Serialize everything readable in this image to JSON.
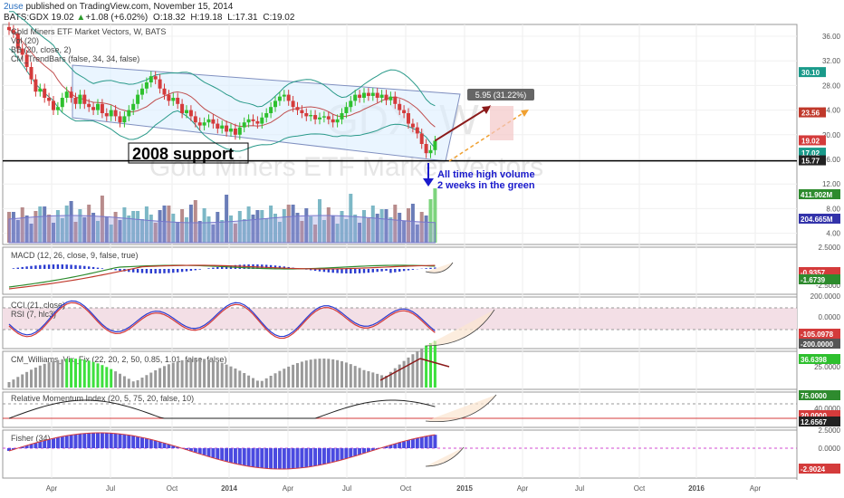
{
  "header": {
    "user": "2use",
    "published": "published on TradingView.com, November 15, 2014",
    "symbol": "BATS:GDX",
    "last": "19.02",
    "change": "+1.08 (+6.02%)",
    "o": "O:18.32",
    "h": "H:19.18",
    "l": "L:17.31",
    "c": "C:19.02"
  },
  "panes": {
    "main": {
      "labels": [
        "Gold Miners ETF Market Vectors, W, BATS",
        "Vol (20)",
        "BB (20, close, 2)",
        "CM_TrendBars (false, 34, 34, false)"
      ],
      "watermark_symbol": "GDX, W",
      "watermark_name": "Gold Miners ETF Market Vectors",
      "price_ticks": [
        "36.00",
        "32.00",
        "28.00",
        "24.00",
        "20.00",
        "16.00",
        "12.00",
        "8.00",
        "4.00"
      ],
      "price_tags": [
        {
          "text": "30.10",
          "price": 30.1,
          "bg": "#1a9a8a",
          "fg": "#ffffff"
        },
        {
          "text": "23.56",
          "price": 23.56,
          "bg": "#c0392b",
          "fg": "#ffffff"
        },
        {
          "text": "19.02",
          "price": 19.02,
          "bg": "#d43b3b",
          "fg": "#ffffff"
        },
        {
          "text": "17.02",
          "price": 17.02,
          "bg": "#1a9a8a",
          "fg": "#ffffff"
        },
        {
          "text": "15.77",
          "price": 15.77,
          "bg": "#222222",
          "fg": "#ffffff"
        }
      ],
      "volume_tags": [
        {
          "text": "411.902M",
          "bg": "#2e8b2e",
          "fg": "#ffffff"
        },
        {
          "text": "204.665M",
          "bg": "#3333aa",
          "fg": "#ffffff"
        }
      ],
      "annotations": {
        "support_label": "2008 support",
        "support_price": 15.77,
        "volume_note_line1": "All time high volume",
        "volume_note_line2": "2 weeks in the green",
        "target_label": "5.95 (31.22%)"
      }
    },
    "macd": {
      "label": "MACD (12, 26, close, 9, false, true)",
      "ticks": [
        "2.5000",
        "-2.5000"
      ],
      "tags": [
        {
          "text": "-0.9357",
          "bg": "#d43b3b"
        },
        {
          "text": "-1.6739",
          "bg": "#2e8b2e"
        }
      ]
    },
    "cci": {
      "label_cci": "CCI (21, close)",
      "label_rsi": "RSI (7, hlc3)",
      "ticks": [
        "200.0000",
        "0.0000"
      ],
      "tags": [
        {
          "text": "-105.0978",
          "bg": "#d43b3b"
        },
        {
          "text": "-200.0000",
          "bg": "#555555"
        }
      ]
    },
    "williams": {
      "label": "CM_Williams_Vix_Fix (22, 20, 2, 50, 0.85, 1.01, false, false)",
      "ticks": [
        "25.0000"
      ],
      "tags": [
        {
          "text": "36.6398",
          "bg": "#2ec02e"
        }
      ]
    },
    "rmi": {
      "label": "Relative Momentum Index (20, 5, 75, 20, false, 10)",
      "ticks": [
        "40.0000"
      ],
      "tags": [
        {
          "text": "75.0000",
          "bg": "#2e8b2e"
        },
        {
          "text": "20.0000",
          "bg": "#d43b3b"
        },
        {
          "text": "12.6567",
          "bg": "#222222"
        }
      ]
    },
    "fisher": {
      "label": "Fisher (34)",
      "ticks": [
        "2.5000",
        "0.0000"
      ],
      "tags": [
        {
          "text": "-2.9024",
          "bg": "#d43b3b"
        }
      ]
    }
  },
  "time_axis": [
    "Apr",
    "Jul",
    "Oct",
    "2014",
    "Apr",
    "Jul",
    "Oct",
    "2015",
    "Apr",
    "Jul",
    "Oct",
    "2016",
    "Apr"
  ],
  "colors": {
    "up": "#2ec02e",
    "down": "#d43b3b",
    "bb": "#2a9a8a",
    "channel": "#8090c0",
    "arrow": "#8b1a1a",
    "projection": "#f0a030",
    "text_blue": "#1a1acc"
  },
  "chart_data": {
    "type": "candlestick",
    "symbol": "BATS:GDX",
    "interval": "W",
    "ylim": [
      4,
      38
    ],
    "support_level": 15.77,
    "last_close": 19.02,
    "projected_gain": 5.95,
    "projected_gain_pct": 31.22,
    "closes": [
      37,
      36.5,
      34,
      33,
      31,
      29,
      27,
      27.5,
      26,
      25.5,
      24,
      24.5,
      26,
      27,
      26,
      25,
      26.5,
      25,
      24.5,
      24,
      25,
      23.5,
      23,
      24,
      23,
      22,
      23,
      24,
      25,
      26.5,
      27.5,
      28.5,
      29.5,
      29,
      27.5,
      26.5,
      25.5,
      26,
      25,
      23.5,
      24,
      23,
      22,
      21.5,
      22,
      22.5,
      21.8,
      21,
      21.5,
      20.5,
      21,
      20,
      21.2,
      22,
      22.5,
      22.2,
      21.8,
      22.8,
      23.5,
      24.5,
      25.5,
      26.2,
      26.5,
      25.5,
      24.5,
      24,
      23.5,
      23,
      23.2,
      22.5,
      22.8,
      23,
      22.5,
      22,
      22.5,
      23.5,
      24.5,
      25.5,
      26.5,
      26,
      26.8,
      26.3,
      26.8,
      26,
      26.5,
      25.6,
      26.2,
      25,
      24,
      23.5,
      21.8,
      21.2,
      20.2,
      18.5,
      17,
      17.5,
      19.02
    ]
  }
}
